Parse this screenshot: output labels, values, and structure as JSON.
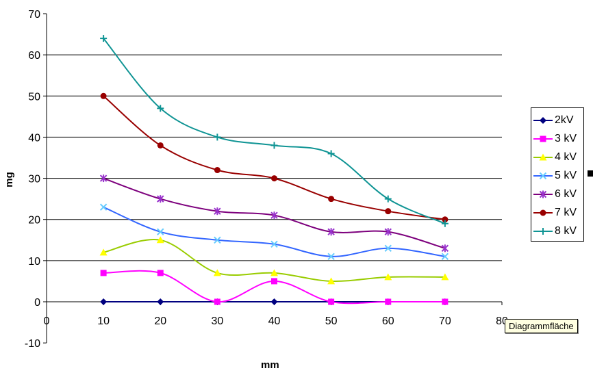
{
  "chart_data": {
    "type": "line",
    "smoothed": true,
    "title": "",
    "xlabel": "mm",
    "ylabel": "mg",
    "xlim": [
      0,
      80
    ],
    "ylim": [
      -10,
      70
    ],
    "x_ticks": [
      0,
      10,
      20,
      30,
      40,
      50,
      60,
      70,
      80
    ],
    "y_ticks": [
      -10,
      0,
      10,
      20,
      30,
      40,
      50,
      60,
      70
    ],
    "gridline_values": [
      0,
      10,
      20,
      30,
      40,
      50,
      60
    ],
    "grid": true,
    "legend_position": "right",
    "x": [
      10,
      20,
      30,
      40,
      50,
      60,
      70
    ],
    "series": [
      {
        "name": "2kV",
        "marker": "diamond",
        "line_color": "#000080",
        "marker_color": "#000080",
        "values": [
          0,
          0,
          0,
          0,
          0,
          0,
          0
        ]
      },
      {
        "name": "3 kV",
        "marker": "square",
        "line_color": "#FF00FF",
        "marker_color": "#FF00FF",
        "values": [
          7,
          7,
          0,
          5,
          0,
          0,
          0
        ]
      },
      {
        "name": "4 kV",
        "marker": "triangle",
        "line_color": "#99CC00",
        "marker_color": "#FFFF00",
        "values": [
          12,
          15,
          7,
          7,
          5,
          6,
          6
        ]
      },
      {
        "name": "5 kV",
        "marker": "x",
        "line_color": "#3366FF",
        "marker_color": "#66CCFF",
        "values": [
          23,
          17,
          15,
          14,
          11,
          13,
          11
        ]
      },
      {
        "name": "6 kV",
        "marker": "asterisk",
        "line_color": "#7D007D",
        "marker_color": "#9933CC",
        "values": [
          30,
          25,
          22,
          21,
          17,
          17,
          13
        ]
      },
      {
        "name": "7 kV",
        "marker": "circle",
        "line_color": "#990000",
        "marker_color": "#990000",
        "values": [
          50,
          38,
          32,
          30,
          25,
          22,
          20
        ]
      },
      {
        "name": "8 kV",
        "marker": "plus",
        "line_color": "#0F9494",
        "marker_color": "#0F9494",
        "values": [
          64,
          47,
          40,
          38,
          36,
          25,
          19
        ]
      }
    ]
  },
  "tooltip": {
    "text": "Diagrammfläche"
  },
  "colors": {
    "background": "#FFFFFF",
    "grid": "#000000",
    "axis": "#000000",
    "tooltip_bg": "#FFFFE1",
    "legend_border": "#000000"
  }
}
